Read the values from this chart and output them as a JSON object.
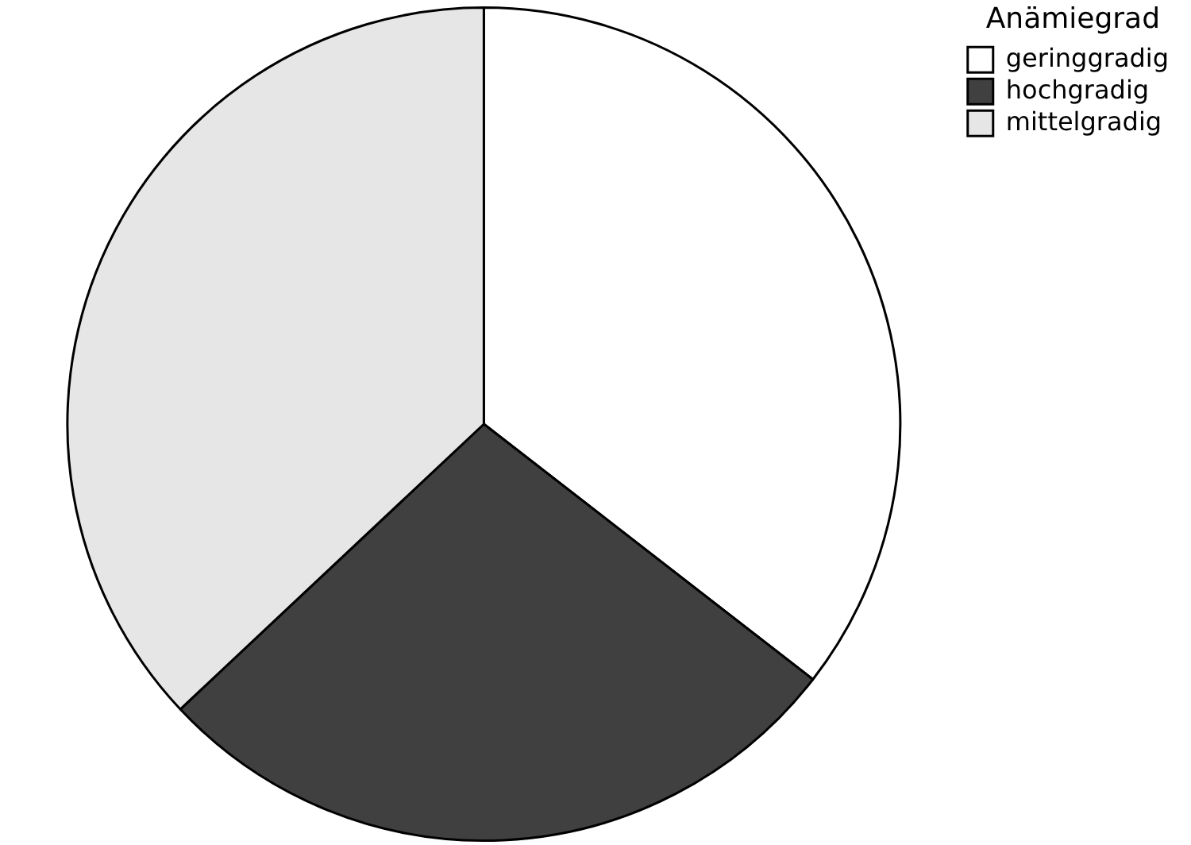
{
  "chart_data": {
    "type": "pie",
    "legend_title": "Anämiegrad",
    "categories": [
      "geringgradig",
      "hochgradig",
      "mittelgradig"
    ],
    "values": [
      35.5,
      27.5,
      37
    ],
    "colors": [
      "#ffffff",
      "#404040",
      "#e6e6e6"
    ],
    "legend": "top right"
  }
}
